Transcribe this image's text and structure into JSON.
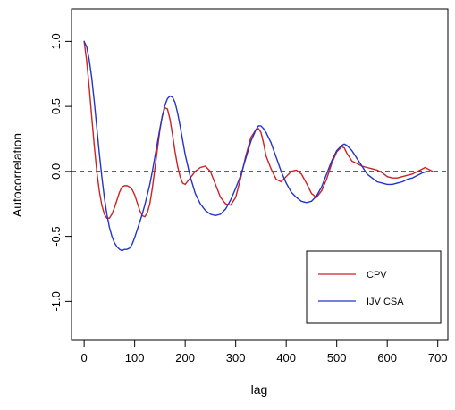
{
  "chart_data": {
    "type": "line",
    "title": "",
    "xlabel": "lag",
    "ylabel": "Autocorrelation",
    "xlim": [
      -25,
      720
    ],
    "ylim": [
      -1.3,
      1.25
    ],
    "xticks": [
      0,
      100,
      200,
      300,
      400,
      500,
      600,
      700
    ],
    "xtick_labels": [
      "0",
      "100",
      "200",
      "300",
      "400",
      "500",
      "600",
      "700"
    ],
    "yticks": [
      -1.0,
      -0.5,
      0.0,
      0.5,
      1.0
    ],
    "ytick_labels": [
      "-1.0",
      "-0.5",
      "0.0",
      "0.5",
      "1.0"
    ],
    "grid": false,
    "reference_line": {
      "y": 0.0,
      "style": "dashed",
      "color": "#000000"
    },
    "legend": {
      "placement": "bottom-right"
    },
    "series": [
      {
        "name": "CPV",
        "color": "#cc2222",
        "x": [
          0,
          5,
          10,
          15,
          20,
          25,
          30,
          35,
          40,
          45,
          50,
          55,
          60,
          65,
          70,
          75,
          80,
          85,
          90,
          95,
          100,
          105,
          110,
          115,
          120,
          125,
          130,
          135,
          140,
          145,
          150,
          155,
          160,
          165,
          170,
          175,
          180,
          185,
          190,
          195,
          200,
          210,
          220,
          230,
          240,
          250,
          260,
          270,
          280,
          290,
          300,
          310,
          320,
          330,
          340,
          345,
          350,
          355,
          360,
          370,
          380,
          390,
          400,
          410,
          420,
          430,
          440,
          450,
          460,
          470,
          480,
          490,
          500,
          510,
          515,
          520,
          530,
          540,
          550,
          560,
          570,
          580,
          590,
          600,
          610,
          620,
          630,
          640,
          650,
          660,
          670,
          675,
          680,
          690
        ],
        "y": [
          1.0,
          0.85,
          0.65,
          0.42,
          0.2,
          0.0,
          -0.15,
          -0.26,
          -0.33,
          -0.36,
          -0.36,
          -0.33,
          -0.28,
          -0.22,
          -0.16,
          -0.12,
          -0.11,
          -0.11,
          -0.12,
          -0.14,
          -0.18,
          -0.24,
          -0.3,
          -0.34,
          -0.35,
          -0.32,
          -0.25,
          -0.13,
          0.02,
          0.17,
          0.32,
          0.43,
          0.49,
          0.48,
          0.4,
          0.28,
          0.15,
          0.04,
          -0.04,
          -0.09,
          -0.1,
          -0.05,
          0.0,
          0.03,
          0.04,
          0.0,
          -0.1,
          -0.2,
          -0.25,
          -0.26,
          -0.2,
          -0.05,
          0.12,
          0.26,
          0.32,
          0.33,
          0.3,
          0.22,
          0.12,
          0.02,
          -0.06,
          -0.08,
          -0.04,
          0.0,
          0.01,
          -0.02,
          -0.09,
          -0.17,
          -0.2,
          -0.15,
          -0.06,
          0.06,
          0.15,
          0.19,
          0.18,
          0.14,
          0.08,
          0.06,
          0.04,
          0.03,
          0.02,
          0.01,
          -0.01,
          -0.04,
          -0.05,
          -0.05,
          -0.04,
          -0.03,
          -0.02,
          0.0,
          0.02,
          0.03,
          0.02,
          0.0
        ]
      },
      {
        "name": "IJV CSA",
        "color": "#2233cc",
        "x": [
          0,
          5,
          10,
          15,
          20,
          25,
          30,
          35,
          40,
          45,
          50,
          55,
          60,
          65,
          70,
          75,
          80,
          85,
          90,
          95,
          100,
          105,
          110,
          115,
          120,
          125,
          130,
          135,
          140,
          145,
          150,
          155,
          160,
          165,
          170,
          175,
          180,
          185,
          190,
          195,
          200,
          210,
          220,
          230,
          240,
          250,
          260,
          270,
          280,
          290,
          300,
          310,
          320,
          330,
          340,
          345,
          350,
          355,
          360,
          370,
          380,
          390,
          400,
          410,
          420,
          430,
          440,
          450,
          460,
          470,
          480,
          490,
          500,
          510,
          515,
          520,
          530,
          540,
          550,
          560,
          570,
          580,
          590,
          600,
          610,
          620,
          630,
          640,
          650,
          660,
          670,
          680
        ],
        "y": [
          1.0,
          0.96,
          0.86,
          0.72,
          0.54,
          0.34,
          0.14,
          -0.04,
          -0.2,
          -0.33,
          -0.43,
          -0.5,
          -0.55,
          -0.58,
          -0.6,
          -0.61,
          -0.6,
          -0.6,
          -0.59,
          -0.56,
          -0.51,
          -0.45,
          -0.39,
          -0.33,
          -0.26,
          -0.18,
          -0.1,
          0.0,
          0.11,
          0.22,
          0.33,
          0.43,
          0.51,
          0.56,
          0.58,
          0.57,
          0.53,
          0.45,
          0.35,
          0.24,
          0.13,
          -0.04,
          -0.17,
          -0.25,
          -0.3,
          -0.33,
          -0.34,
          -0.33,
          -0.29,
          -0.22,
          -0.13,
          -0.03,
          0.1,
          0.23,
          0.32,
          0.35,
          0.35,
          0.33,
          0.3,
          0.22,
          0.11,
          0.0,
          -0.09,
          -0.16,
          -0.2,
          -0.23,
          -0.24,
          -0.23,
          -0.19,
          -0.12,
          -0.02,
          0.08,
          0.16,
          0.2,
          0.21,
          0.2,
          0.16,
          0.1,
          0.04,
          -0.02,
          -0.05,
          -0.08,
          -0.09,
          -0.1,
          -0.1,
          -0.09,
          -0.08,
          -0.06,
          -0.05,
          -0.03,
          -0.01,
          0.0
        ]
      }
    ]
  }
}
